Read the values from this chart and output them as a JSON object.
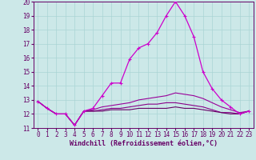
{
  "xlabel": "Windchill (Refroidissement éolien,°C)",
  "background_color": "#cce8e8",
  "xlim": [
    -0.5,
    23.5
  ],
  "ylim": [
    11,
    20
  ],
  "xticks": [
    0,
    1,
    2,
    3,
    4,
    5,
    6,
    7,
    8,
    9,
    10,
    11,
    12,
    13,
    14,
    15,
    16,
    17,
    18,
    19,
    20,
    21,
    22,
    23
  ],
  "yticks": [
    11,
    12,
    13,
    14,
    15,
    16,
    17,
    18,
    19,
    20
  ],
  "grid_color": "#aad4d4",
  "series": [
    {
      "x": [
        0,
        1,
        2,
        3,
        4,
        5,
        6,
        7,
        8,
        9,
        10,
        11,
        12,
        13,
        14,
        15,
        16,
        17,
        18,
        19,
        20,
        21,
        22,
        23
      ],
      "y": [
        12.9,
        12.4,
        12.0,
        12.0,
        11.2,
        12.2,
        12.4,
        13.3,
        14.2,
        14.2,
        15.9,
        16.7,
        17.0,
        17.8,
        19.0,
        20.0,
        19.0,
        17.5,
        15.0,
        13.8,
        13.0,
        12.5,
        12.0,
        12.2
      ],
      "color": "#cc00cc",
      "linewidth": 0.9,
      "marker": "+",
      "markersize": 3.5
    },
    {
      "x": [
        0,
        1,
        2,
        3,
        4,
        5,
        6,
        7,
        8,
        9,
        10,
        11,
        12,
        13,
        14,
        15,
        16,
        17,
        18,
        19,
        20,
        21,
        22,
        23
      ],
      "y": [
        12.9,
        12.4,
        12.0,
        12.0,
        11.2,
        12.2,
        12.3,
        12.5,
        12.6,
        12.7,
        12.8,
        13.0,
        13.1,
        13.2,
        13.3,
        13.5,
        13.4,
        13.3,
        13.1,
        12.8,
        12.5,
        12.3,
        12.1,
        12.2
      ],
      "color": "#990099",
      "linewidth": 0.8,
      "marker": null,
      "markersize": 0
    },
    {
      "x": [
        0,
        1,
        2,
        3,
        4,
        5,
        6,
        7,
        8,
        9,
        10,
        11,
        12,
        13,
        14,
        15,
        16,
        17,
        18,
        19,
        20,
        21,
        22,
        23
      ],
      "y": [
        12.9,
        12.4,
        12.0,
        12.0,
        11.2,
        12.2,
        12.2,
        12.3,
        12.4,
        12.4,
        12.5,
        12.6,
        12.7,
        12.7,
        12.8,
        12.8,
        12.7,
        12.6,
        12.5,
        12.3,
        12.1,
        12.1,
        12.0,
        12.2
      ],
      "color": "#880088",
      "linewidth": 0.8,
      "marker": null,
      "markersize": 0
    },
    {
      "x": [
        0,
        1,
        2,
        3,
        4,
        5,
        6,
        7,
        8,
        9,
        10,
        11,
        12,
        13,
        14,
        15,
        16,
        17,
        18,
        19,
        20,
        21,
        22,
        23
      ],
      "y": [
        12.9,
        12.4,
        12.0,
        12.0,
        11.2,
        12.2,
        12.2,
        12.2,
        12.3,
        12.3,
        12.3,
        12.4,
        12.4,
        12.4,
        12.4,
        12.5,
        12.4,
        12.4,
        12.3,
        12.2,
        12.1,
        12.0,
        12.0,
        12.2
      ],
      "color": "#660066",
      "linewidth": 0.8,
      "marker": null,
      "markersize": 0
    }
  ],
  "tick_fontsize": 5.5,
  "xlabel_fontsize": 6.0,
  "tick_color": "#660066",
  "spine_color": "#660066"
}
